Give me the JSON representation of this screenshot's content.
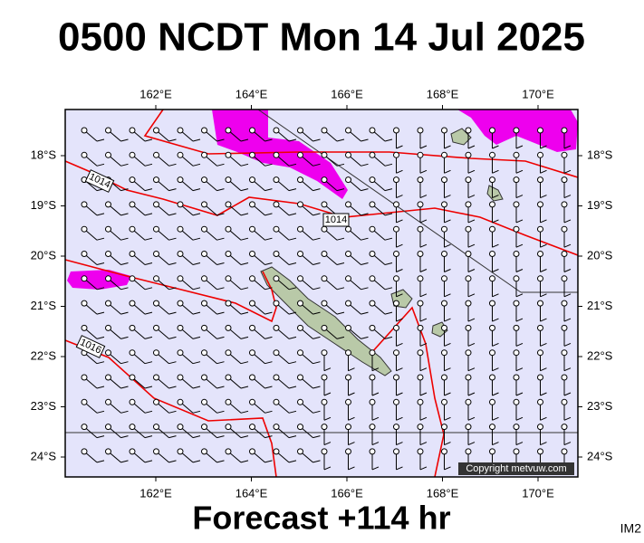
{
  "title": "0500 NCDT Mon 14 Jul 2025",
  "map": {
    "lon_labels": [
      "162°E",
      "164°E",
      "166°E",
      "168°E",
      "170°E"
    ],
    "lat_labels": [
      "18°S",
      "19°S",
      "20°S",
      "21°S",
      "22°S",
      "23°S",
      "24°S"
    ],
    "isobar_labels": [
      "1014",
      "1014",
      "1016"
    ],
    "copyright": "Copyright metvuw.com"
  },
  "footer": "Forecast +114 hr",
  "image_id": "IM2"
}
